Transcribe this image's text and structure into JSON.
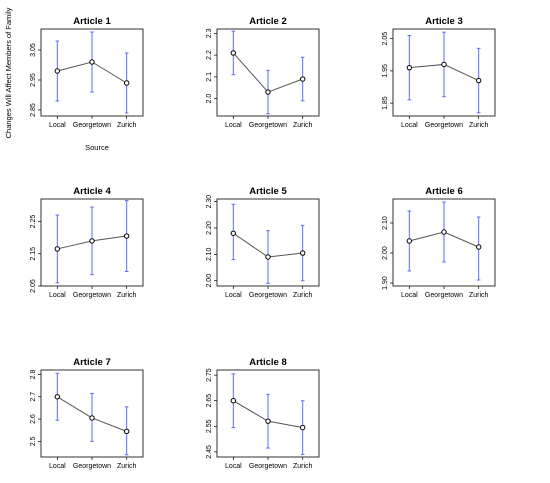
{
  "figure": {
    "ylabel": "Changes Will Affect Members of Family",
    "xlabel": "Source"
  },
  "chart_data": [
    {
      "type": "line",
      "title": "Article 1",
      "categories": [
        "Local",
        "Georgetown",
        "Zurich"
      ],
      "values": [
        2.98,
        3.01,
        2.94
      ],
      "err_low": [
        2.88,
        2.91,
        2.84
      ],
      "err_high": [
        3.08,
        3.11,
        3.04
      ],
      "yticks": [
        "2.85",
        "2.95",
        "3.05"
      ],
      "ylim": [
        2.83,
        3.12
      ]
    },
    {
      "type": "line",
      "title": "Article 2",
      "categories": [
        "Local",
        "Georgetown",
        "Zurich"
      ],
      "values": [
        2.21,
        2.03,
        2.09
      ],
      "err_low": [
        2.11,
        1.93,
        1.99
      ],
      "err_high": [
        2.31,
        2.13,
        2.19
      ],
      "yticks": [
        "2.0",
        "2.1",
        "2.2",
        "2.3"
      ],
      "ylim": [
        1.92,
        2.32
      ]
    },
    {
      "type": "line",
      "title": "Article 3",
      "categories": [
        "Local",
        "Georgetown",
        "Zurich"
      ],
      "values": [
        1.96,
        1.97,
        1.92
      ],
      "err_low": [
        1.86,
        1.87,
        1.82
      ],
      "err_high": [
        2.06,
        2.07,
        2.02
      ],
      "yticks": [
        "1.85",
        "1.95",
        "2.05"
      ],
      "ylim": [
        1.81,
        2.08
      ]
    },
    {
      "type": "line",
      "title": "Article 4",
      "categories": [
        "Local",
        "Georgetown",
        "Zurich"
      ],
      "values": [
        2.165,
        2.19,
        2.205
      ],
      "err_low": [
        2.06,
        2.085,
        2.095
      ],
      "err_high": [
        2.27,
        2.295,
        2.315
      ],
      "yticks": [
        "2.05",
        "2.15",
        "2.25"
      ],
      "ylim": [
        2.05,
        2.32
      ]
    },
    {
      "type": "line",
      "title": "Article 5",
      "categories": [
        "Local",
        "Georgetown",
        "Zurich"
      ],
      "values": [
        2.18,
        2.09,
        2.105
      ],
      "err_low": [
        2.08,
        1.99,
        2.0
      ],
      "err_high": [
        2.29,
        2.19,
        2.21
      ],
      "yticks": [
        "2.00",
        "2.10",
        "2.20",
        "2.30"
      ],
      "ylim": [
        1.98,
        2.31
      ]
    },
    {
      "type": "line",
      "title": "Article 6",
      "categories": [
        "Local",
        "Georgetown",
        "Zurich"
      ],
      "values": [
        2.04,
        2.07,
        2.02
      ],
      "err_low": [
        1.94,
        1.97,
        1.91
      ],
      "err_high": [
        2.14,
        2.17,
        2.12
      ],
      "yticks": [
        "1.90",
        "2.00",
        "2.10"
      ],
      "ylim": [
        1.89,
        2.18
      ]
    },
    {
      "type": "line",
      "title": "Article 7",
      "categories": [
        "Local",
        "Georgetown",
        "Zurich"
      ],
      "values": [
        2.7,
        2.605,
        2.545
      ],
      "err_low": [
        2.595,
        2.5,
        2.44
      ],
      "err_high": [
        2.805,
        2.715,
        2.655
      ],
      "yticks": [
        "2.5",
        "2.6",
        "2.7",
        "2.8"
      ],
      "ylim": [
        2.43,
        2.82
      ]
    },
    {
      "type": "line",
      "title": "Article 8",
      "categories": [
        "Local",
        "Georgetown",
        "Zurich"
      ],
      "values": [
        2.65,
        2.57,
        2.545
      ],
      "err_low": [
        2.545,
        2.465,
        2.44
      ],
      "err_high": [
        2.755,
        2.675,
        2.65
      ],
      "yticks": [
        "2.45",
        "2.55",
        "2.65",
        "2.75"
      ],
      "ylim": [
        2.43,
        2.77
      ]
    }
  ]
}
